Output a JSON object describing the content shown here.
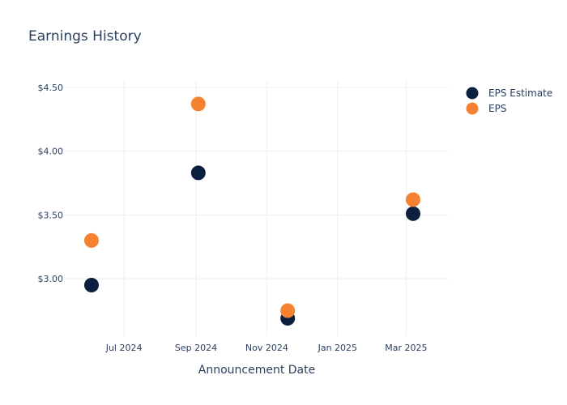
{
  "chart_data": {
    "type": "scatter",
    "title": "Earnings History",
    "xlabel": "Announcement Date",
    "ylabel": "",
    "x_ticks": [
      {
        "date": "2024-07-01",
        "label": "Jul 2024"
      },
      {
        "date": "2024-09-01",
        "label": "Sep 2024"
      },
      {
        "date": "2024-11-01",
        "label": "Nov 2024"
      },
      {
        "date": "2025-01-01",
        "label": "Jan 2025"
      },
      {
        "date": "2025-03-01",
        "label": "Mar 2025"
      }
    ],
    "y_ticks": [
      {
        "value": 3.0,
        "label": "$3.00"
      },
      {
        "value": 3.5,
        "label": "$3.50"
      },
      {
        "value": 4.0,
        "label": "$4.00"
      },
      {
        "value": 4.5,
        "label": "$4.50"
      }
    ],
    "xlim": [
      "2024-05-11",
      "2025-04-06"
    ],
    "ylim": [
      2.55,
      4.55
    ],
    "grid": true,
    "legend_position": "top-right",
    "series": [
      {
        "name": "EPS Estimate",
        "color": "#0b1f3f",
        "points": [
          {
            "date": "2024-06-03",
            "value": 2.95
          },
          {
            "date": "2024-09-03",
            "value": 3.83
          },
          {
            "date": "2024-11-19",
            "value": 2.69
          },
          {
            "date": "2025-03-07",
            "value": 3.51
          }
        ]
      },
      {
        "name": "EPS",
        "color": "#f58231",
        "points": [
          {
            "date": "2024-06-03",
            "value": 3.3
          },
          {
            "date": "2024-09-03",
            "value": 4.37
          },
          {
            "date": "2024-11-19",
            "value": 2.75
          },
          {
            "date": "2025-03-07",
            "value": 3.62
          }
        ]
      }
    ]
  }
}
